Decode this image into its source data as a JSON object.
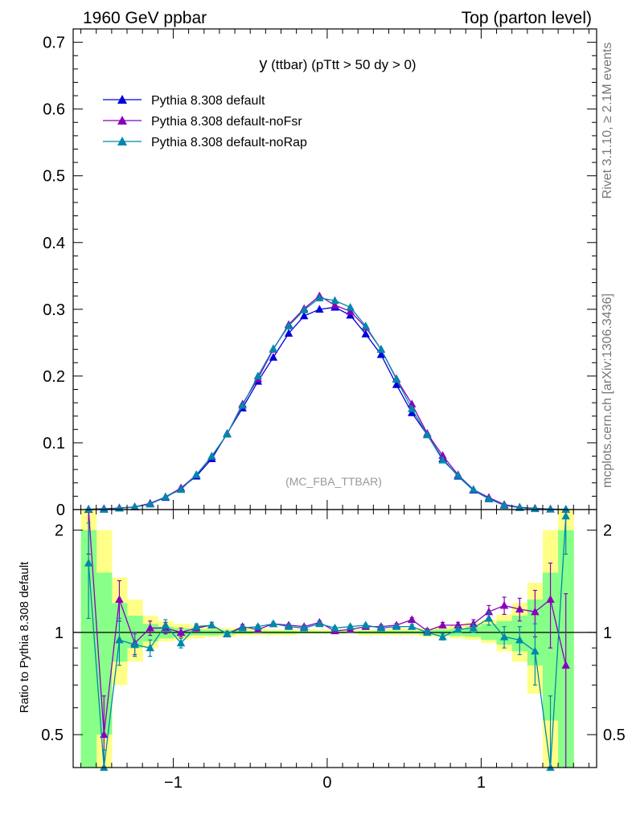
{
  "header": {
    "left": "1960 GeV ppbar",
    "right": "Top (parton level)"
  },
  "side_labels": {
    "rivet": "Rivet 3.1.10, ≥ 2.1M events",
    "mcplots": "mcplots.cern.ch [arXiv:1306.3436]"
  },
  "chart_data": {
    "type": "line",
    "title": "y (ttbar) (pTtt > 50 dy > 0)",
    "title_main": "y",
    "title_rest": " (ttbar) (pTtt > 50 dy > 0)",
    "watermark": "(MC_FBA_TTBAR)",
    "xlim": [
      -1.65,
      1.75
    ],
    "ylim": [
      0,
      0.72
    ],
    "x_ticks": [
      -1,
      0,
      1
    ],
    "x_tick_labels": [
      "−1",
      "0",
      "1"
    ],
    "y_ticks": [
      0,
      0.1,
      0.2,
      0.3,
      0.4,
      0.5,
      0.6,
      0.7
    ],
    "y_tick_labels": [
      "0",
      "0.1",
      "0.2",
      "0.3",
      "0.4",
      "0.5",
      "0.6",
      "0.7"
    ],
    "legend_position": "top-left",
    "x": [
      -1.55,
      -1.45,
      -1.35,
      -1.25,
      -1.15,
      -1.05,
      -0.95,
      -0.85,
      -0.75,
      -0.65,
      -0.55,
      -0.45,
      -0.35,
      -0.25,
      -0.15,
      -0.05,
      0.05,
      0.15,
      0.25,
      0.35,
      0.45,
      0.55,
      0.65,
      0.75,
      0.85,
      0.95,
      1.05,
      1.15,
      1.25,
      1.35,
      1.45,
      1.55
    ],
    "series": [
      {
        "name": "Pythia 8.308 default",
        "color": "#0000dd",
        "values": [
          0.0003,
          0.0012,
          0.002,
          0.004,
          0.009,
          0.018,
          0.032,
          0.05,
          0.076,
          0.114,
          0.152,
          0.192,
          0.228,
          0.264,
          0.29,
          0.3,
          0.303,
          0.291,
          0.263,
          0.232,
          0.187,
          0.145,
          0.112,
          0.076,
          0.05,
          0.029,
          0.016,
          0.0065,
          0.003,
          0.0015,
          0.0006,
          0.0002
        ]
      },
      {
        "name": "Pythia 8.308 default-noFsr",
        "color": "#8800bb",
        "values": [
          0.0006,
          0.0006,
          0.0025,
          0.0037,
          0.0093,
          0.019,
          0.032,
          0.052,
          0.079,
          0.113,
          0.158,
          0.196,
          0.24,
          0.277,
          0.301,
          0.32,
          0.306,
          0.297,
          0.273,
          0.24,
          0.196,
          0.158,
          0.114,
          0.081,
          0.052,
          0.03,
          0.018,
          0.0075,
          0.0035,
          0.0018,
          0.0007,
          0.00016
        ]
      },
      {
        "name": "Pythia 8.308 default-noRap",
        "color": "#0088aa",
        "values": [
          0.0005,
          0.0002,
          0.0019,
          0.0037,
          0.0081,
          0.019,
          0.03,
          0.052,
          0.08,
          0.113,
          0.156,
          0.2,
          0.241,
          0.275,
          0.299,
          0.317,
          0.313,
          0.303,
          0.275,
          0.24,
          0.195,
          0.151,
          0.112,
          0.074,
          0.051,
          0.03,
          0.016,
          0.0063,
          0.0028,
          0.0012,
          0.0006,
          0.00043
        ]
      }
    ],
    "ratio": {
      "ylabel": "Ratio to Pythia 8.308 default",
      "ylim": [
        0.4,
        2.3
      ],
      "y_ticks": [
        0.5,
        1,
        2
      ],
      "y_tick_labels": [
        "0.5",
        "1",
        "2"
      ],
      "band_yellow": [
        [
          0.3,
          2.6
        ],
        [
          0.4,
          2.0
        ],
        [
          0.7,
          1.45
        ],
        [
          0.82,
          1.25
        ],
        [
          0.9,
          1.12
        ],
        [
          0.94,
          1.08
        ],
        [
          0.95,
          1.06
        ],
        [
          0.96,
          1.05
        ],
        [
          0.97,
          1.04
        ],
        [
          0.97,
          1.03
        ],
        [
          0.98,
          1.03
        ],
        [
          0.98,
          1.03
        ],
        [
          0.98,
          1.02
        ],
        [
          0.98,
          1.02
        ],
        [
          0.99,
          1.02
        ],
        [
          0.99,
          1.02
        ],
        [
          0.99,
          1.02
        ],
        [
          0.99,
          1.02
        ],
        [
          0.98,
          1.02
        ],
        [
          0.98,
          1.02
        ],
        [
          0.98,
          1.03
        ],
        [
          0.98,
          1.03
        ],
        [
          0.97,
          1.03
        ],
        [
          0.97,
          1.04
        ],
        [
          0.96,
          1.05
        ],
        [
          0.95,
          1.07
        ],
        [
          0.93,
          1.09
        ],
        [
          0.88,
          1.13
        ],
        [
          0.82,
          1.22
        ],
        [
          0.66,
          1.4
        ],
        [
          0.4,
          2.0
        ],
        [
          0.3,
          2.6
        ]
      ],
      "band_green": [
        [
          0.3,
          2.0
        ],
        [
          0.5,
          1.5
        ],
        [
          0.82,
          1.22
        ],
        [
          0.9,
          1.12
        ],
        [
          0.94,
          1.06
        ],
        [
          0.96,
          1.04
        ],
        [
          0.97,
          1.03
        ],
        [
          0.98,
          1.02
        ],
        [
          0.98,
          1.02
        ],
        [
          0.985,
          1.015
        ],
        [
          0.99,
          1.01
        ],
        [
          0.99,
          1.01
        ],
        [
          0.99,
          1.01
        ],
        [
          0.99,
          1.01
        ],
        [
          0.993,
          1.007
        ],
        [
          0.993,
          1.007
        ],
        [
          0.993,
          1.007
        ],
        [
          0.993,
          1.007
        ],
        [
          0.99,
          1.01
        ],
        [
          0.99,
          1.01
        ],
        [
          0.99,
          1.01
        ],
        [
          0.99,
          1.01
        ],
        [
          0.985,
          1.015
        ],
        [
          0.98,
          1.02
        ],
        [
          0.975,
          1.025
        ],
        [
          0.97,
          1.04
        ],
        [
          0.95,
          1.06
        ],
        [
          0.92,
          1.08
        ],
        [
          0.88,
          1.12
        ],
        [
          0.8,
          1.25
        ],
        [
          0.55,
          1.5
        ],
        [
          0.3,
          2.0
        ]
      ],
      "noFsr": [
        2.3,
        0.5,
        1.25,
        0.93,
        1.03,
        1.03,
        1.0,
        1.03,
        1.05,
        0.99,
        1.04,
        1.02,
        1.06,
        1.05,
        1.04,
        1.07,
        1.01,
        1.02,
        1.04,
        1.04,
        1.05,
        1.09,
        1.01,
        1.05,
        1.05,
        1.06,
        1.15,
        1.2,
        1.17,
        1.15,
        1.25,
        0.8
      ],
      "noRap": [
        1.6,
        0.3,
        0.95,
        0.92,
        0.9,
        1.05,
        0.93,
        1.04,
        1.05,
        0.99,
        1.03,
        1.04,
        1.06,
        1.04,
        1.03,
        1.06,
        1.03,
        1.04,
        1.05,
        1.03,
        1.04,
        1.04,
        1.0,
        0.97,
        1.02,
        1.03,
        1.1,
        0.97,
        0.95,
        0.88,
        0.3,
        2.2
      ],
      "noFsr_err": [
        0.6,
        0.15,
        0.17,
        0.07,
        0.05,
        0.04,
        0.03,
        0.02,
        0.02,
        0.015,
        0.015,
        0.012,
        0.012,
        0.01,
        0.01,
        0.01,
        0.01,
        0.01,
        0.01,
        0.012,
        0.012,
        0.015,
        0.015,
        0.02,
        0.02,
        0.03,
        0.05,
        0.07,
        0.09,
        0.18,
        0.35,
        0.5
      ],
      "noRap_err": [
        0.5,
        0.15,
        0.15,
        0.07,
        0.05,
        0.04,
        0.03,
        0.02,
        0.02,
        0.015,
        0.015,
        0.012,
        0.012,
        0.01,
        0.01,
        0.01,
        0.01,
        0.01,
        0.01,
        0.012,
        0.012,
        0.015,
        0.015,
        0.02,
        0.02,
        0.03,
        0.05,
        0.07,
        0.09,
        0.18,
        0.35,
        0.5
      ]
    }
  }
}
